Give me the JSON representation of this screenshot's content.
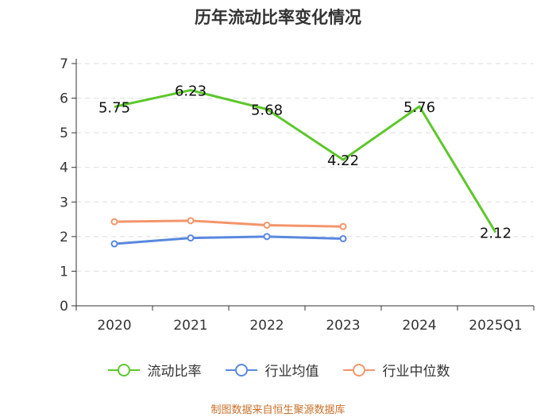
{
  "chart_data": {
    "type": "line",
    "title": "历年流动比率变化情况",
    "categories": [
      "2020",
      "2021",
      "2022",
      "2023",
      "2024",
      "2025Q1"
    ],
    "ylim": [
      0,
      7
    ],
    "yticks": [
      0,
      1,
      2,
      3,
      4,
      5,
      6,
      7
    ],
    "grid": true,
    "legend_position": "bottom",
    "series": [
      {
        "name": "流动比率",
        "color": "#5dc72c",
        "values": [
          5.75,
          6.23,
          5.68,
          4.22,
          5.76,
          2.12
        ],
        "labels": [
          "5.75",
          "6.23",
          "5.68",
          "4.22",
          "5.76",
          "2.12"
        ],
        "show_labels": true,
        "show_markers": false
      },
      {
        "name": "行业均值",
        "color": "#5a88e0",
        "values": [
          1.79,
          1.96,
          2.0,
          1.94,
          null,
          null
        ],
        "show_labels": false,
        "show_markers": true
      },
      {
        "name": "行业中位数",
        "color": "#f4956b",
        "values": [
          2.43,
          2.46,
          2.33,
          2.29,
          null,
          null
        ],
        "show_labels": false,
        "show_markers": true
      }
    ]
  },
  "source": "制图数据来自恒生聚源数据库"
}
